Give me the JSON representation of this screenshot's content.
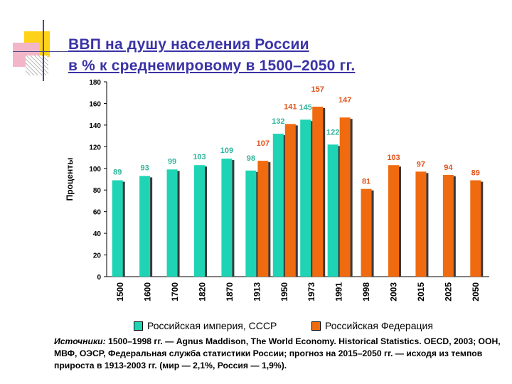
{
  "title": {
    "line1": "ВВП на душу населения России",
    "line2": "в % к среднемировому в 1500–2050 гг."
  },
  "legend": {
    "empire_label": "Российская империя, СССР",
    "federation_label": "Российская Федерация"
  },
  "source": {
    "label": "Источники:",
    "text": " 1500–1998 гг. — Agnus Maddison, The World Economy. Historical Statistics. OECD, 2003; ООН, МВФ, ОЭСР, Федеральная служба статистики России; прогноз на 2015–2050 гг. — исходя из темпов прироста в 1913-2003 гг. (мир — 2,1%, Россия — 1,9%)."
  },
  "colors": {
    "empire": "#1fd4b4",
    "federation": "#f06a0f",
    "title": "#3a33a6",
    "label_empire": "#2fb59c",
    "label_federation": "#e0521b"
  },
  "chart_data": {
    "type": "bar",
    "ylabel": "Проценты",
    "xlabel": "",
    "ylim": [
      0,
      180
    ],
    "yticks": [
      0,
      20,
      40,
      60,
      80,
      100,
      120,
      140,
      160,
      180
    ],
    "grid": false,
    "legend_position": "bottom",
    "categories": [
      "1500",
      "1600",
      "1700",
      "1820",
      "1870",
      "1913",
      "1950",
      "1973",
      "1991",
      "1998",
      "2003",
      "2015",
      "2025",
      "2050"
    ],
    "series": [
      {
        "name": "Российская империя, СССР",
        "values": [
          89,
          93,
          99,
          103,
          109,
          98,
          132,
          145,
          122,
          null,
          null,
          null,
          null,
          null
        ]
      },
      {
        "name": "Российская Федерация",
        "values": [
          null,
          null,
          null,
          null,
          null,
          107,
          141,
          157,
          147,
          81,
          103,
          97,
          94,
          89
        ]
      }
    ],
    "data_labels": {
      "empire": [
        "89",
        "93",
        "99",
        "103",
        "109",
        "98",
        "132",
        "145",
        "122",
        null,
        null,
        null,
        null,
        null
      ],
      "federation": [
        null,
        null,
        null,
        null,
        null,
        "107",
        "141",
        "157",
        "147",
        "81",
        "103",
        "97",
        "94",
        "89"
      ]
    }
  }
}
